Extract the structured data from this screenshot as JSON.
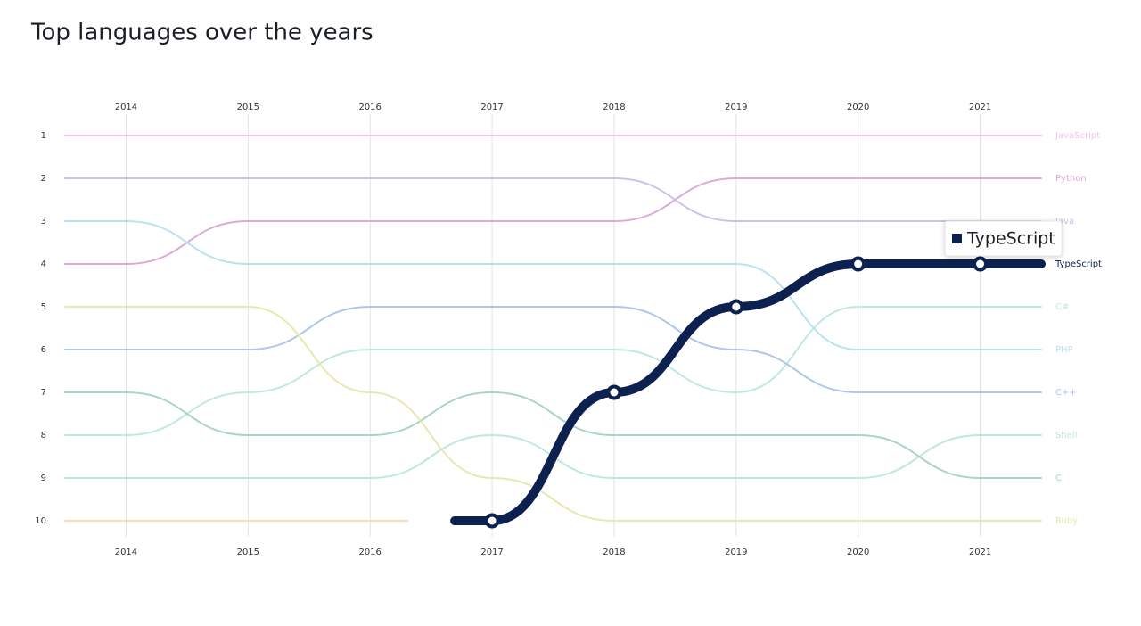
{
  "chart_data": {
    "type": "bump",
    "title": "Top languages over the years",
    "x": [
      2014,
      2015,
      2016,
      2017,
      2018,
      2019,
      2020,
      2021
    ],
    "xlim": [
      2013.5,
      2021.5
    ],
    "xticks": [
      2014,
      2015,
      2016,
      2017,
      2018,
      2019,
      2020,
      2021
    ],
    "ylim": [
      10,
      1
    ],
    "yticks": [
      1,
      2,
      3,
      4,
      5,
      6,
      7,
      8,
      9,
      10
    ],
    "grid": true,
    "series": [
      {
        "name": "JavaScript",
        "color": "#f0c4ec",
        "values": [
          1,
          1,
          1,
          1,
          1,
          1,
          1,
          1
        ]
      },
      {
        "name": "Python",
        "color": "#dcaad8",
        "values": [
          4,
          3,
          3,
          3,
          3,
          2,
          2,
          2
        ]
      },
      {
        "name": "Java",
        "color": "#cdc0ea",
        "values": [
          2,
          2,
          2,
          2,
          2,
          3,
          3,
          3
        ]
      },
      {
        "name": "C#",
        "color": "#bfe8e4",
        "values": [
          8,
          7,
          6,
          6,
          6,
          7,
          5,
          5
        ]
      },
      {
        "name": "PHP",
        "color": "#b8e2f2",
        "values": [
          3,
          4,
          4,
          4,
          4,
          4,
          6,
          6
        ]
      },
      {
        "name": "C++",
        "color": "#adc6ee",
        "values": [
          6,
          6,
          5,
          5,
          5,
          6,
          7,
          7
        ]
      },
      {
        "name": "Shell",
        "color": "#bce9dc",
        "values": [
          9,
          9,
          9,
          8,
          9,
          9,
          9,
          8
        ]
      },
      {
        "name": "C",
        "color": "#a9d4c6",
        "values": [
          7,
          8,
          8,
          7,
          8,
          8,
          8,
          9
        ]
      },
      {
        "name": "Ruby",
        "color": "#e8e8ae",
        "values": [
          5,
          5,
          7,
          9,
          10,
          10,
          10,
          10
        ]
      },
      {
        "color": "#f6dcae",
        "values": [
          10,
          10,
          10,
          null,
          null,
          null,
          null,
          null
        ]
      },
      {
        "name": "TypeScript",
        "color": "#0c2150",
        "highlight": true,
        "values": [
          null,
          null,
          null,
          10,
          7,
          5,
          4,
          4
        ]
      }
    ],
    "tooltip": "TypeScript"
  }
}
